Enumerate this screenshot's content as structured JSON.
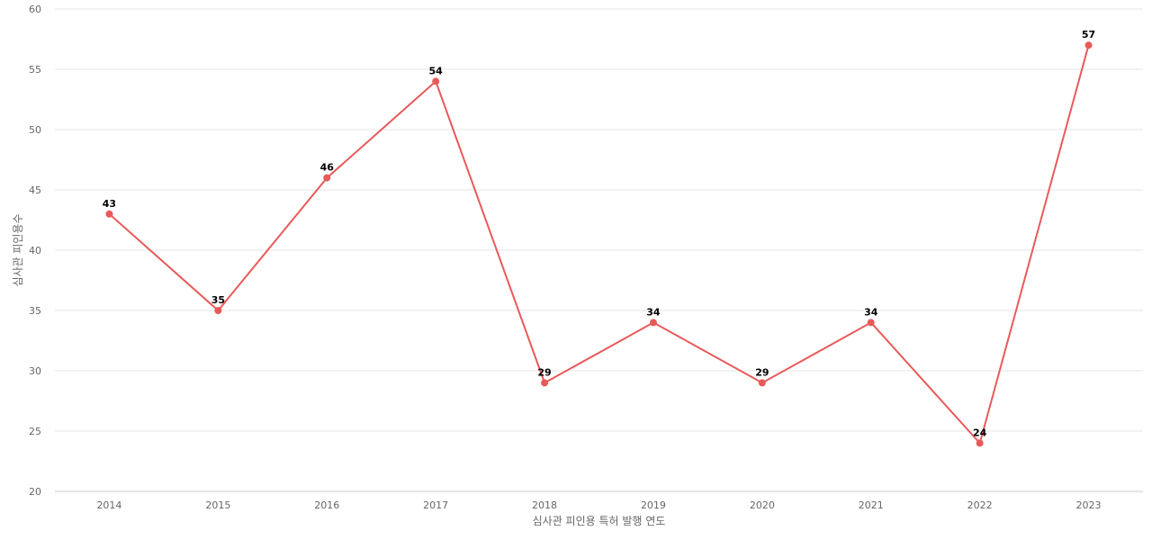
{
  "chart_data": {
    "type": "line",
    "x": [
      "2014",
      "2015",
      "2016",
      "2017",
      "2018",
      "2019",
      "2020",
      "2021",
      "2022",
      "2023"
    ],
    "series": [
      {
        "values": [
          43,
          35,
          46,
          54,
          29,
          34,
          29,
          34,
          24,
          57
        ]
      }
    ],
    "xlabel": "심사관 피인용 특허 발행 연도",
    "ylabel": "심사관 피인용수",
    "ylim": [
      20,
      60
    ],
    "yticks": [
      20,
      25,
      30,
      35,
      40,
      45,
      50,
      55,
      60
    ],
    "grid": true,
    "data_labels": true,
    "line_color": "#e85a5a"
  }
}
